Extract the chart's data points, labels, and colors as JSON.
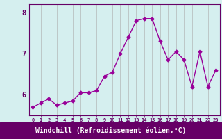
{
  "x": [
    0,
    1,
    2,
    3,
    4,
    5,
    6,
    7,
    8,
    9,
    10,
    11,
    12,
    13,
    14,
    15,
    16,
    17,
    18,
    19,
    20,
    21,
    22,
    23
  ],
  "y": [
    5.7,
    5.8,
    5.9,
    5.75,
    5.8,
    5.85,
    6.05,
    6.05,
    6.1,
    6.45,
    6.55,
    7.0,
    7.4,
    7.8,
    7.85,
    7.85,
    7.3,
    6.85,
    7.05,
    6.85,
    6.2,
    7.05,
    6.2,
    6.6
  ],
  "line_color": "#990099",
  "marker": "D",
  "markersize": 2.5,
  "linewidth": 1.0,
  "background_color": "#d5efef",
  "grid_color": "#aaaaaa",
  "xlabel": "Windchill (Refroidissement éolien,°C)",
  "xlabel_fontsize": 7,
  "tick_label_color": "#990099",
  "xlim": [
    -0.5,
    23.5
  ],
  "ylim": [
    5.5,
    8.2
  ],
  "yticks": [
    6,
    7,
    8
  ],
  "xticks": [
    0,
    1,
    2,
    3,
    4,
    5,
    6,
    7,
    8,
    9,
    10,
    11,
    12,
    13,
    14,
    15,
    16,
    17,
    18,
    19,
    20,
    21,
    22,
    23
  ],
  "xlabel_bg_color": "#660066",
  "xlabel_text_color": "#ffffff",
  "xtick_line_color": "#660066",
  "spine_color": "#660066"
}
